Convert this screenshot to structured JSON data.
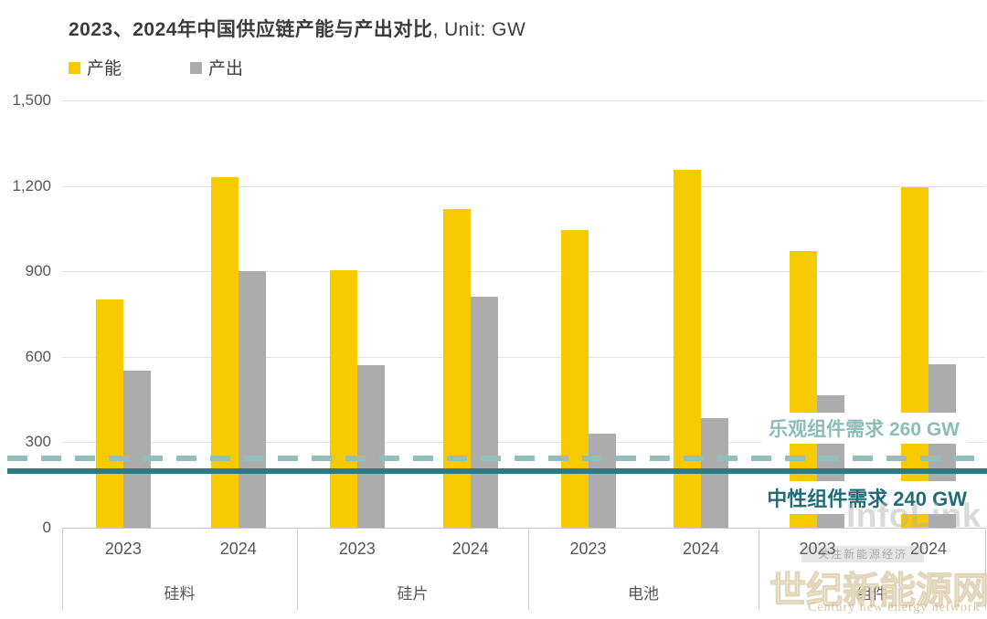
{
  "title": {
    "full": "2023、2024年中国供应链产能与产出对比, Unit: GW",
    "main": "2023、2024年中国供应链产能与产出对比",
    "unit": ", Unit: GW"
  },
  "legend": [
    {
      "label": "产能",
      "color": "#F7CA00"
    },
    {
      "label": "产出",
      "color": "#ACACAC"
    }
  ],
  "chart_data": {
    "type": "bar",
    "title": "2023、2024年中国供应链产能与产出对比",
    "unit": "GW",
    "categories": [
      "硅料",
      "硅片",
      "电池",
      "组件"
    ],
    "x_sublabels": [
      "2023",
      "2024"
    ],
    "series": [
      {
        "name": "产能",
        "color": "#F7CA00",
        "values": [
          800,
          1230,
          905,
          1120,
          1045,
          1255,
          970,
          1195
        ]
      },
      {
        "name": "产出",
        "color": "#ACACAC",
        "values": [
          550,
          900,
          570,
          810,
          330,
          385,
          465,
          575
        ]
      }
    ],
    "value_order": "per category: [2023, 2024]",
    "ylim": [
      0,
      1500
    ],
    "y_ticks": [
      {
        "label": "0",
        "value": 0
      },
      {
        "label": "300",
        "value": 300
      },
      {
        "label": "600",
        "value": 600
      },
      {
        "label": "900",
        "value": 900
      },
      {
        "label": "1,200",
        "value": 1200
      },
      {
        "label": "1,500",
        "value": 1500
      }
    ],
    "grid": "horizontal",
    "legend_position": "top-left",
    "reference_lines": [
      {
        "label": "乐观组件需求 260 GW",
        "value": 260,
        "style": "dashed",
        "line_color": "#90BFBC",
        "label_color": "#8CBCB8"
      },
      {
        "label": "中性组件需求 240 GW",
        "value": 240,
        "style": "solid",
        "line_color": "#2F7A82",
        "label_color": "#226C77"
      }
    ]
  },
  "watermarks": {
    "infolink": "InfoLink",
    "site_cn": "世纪新能源网",
    "site_en": "Century new energy network",
    "ribbon": "关注新能源经济"
  }
}
